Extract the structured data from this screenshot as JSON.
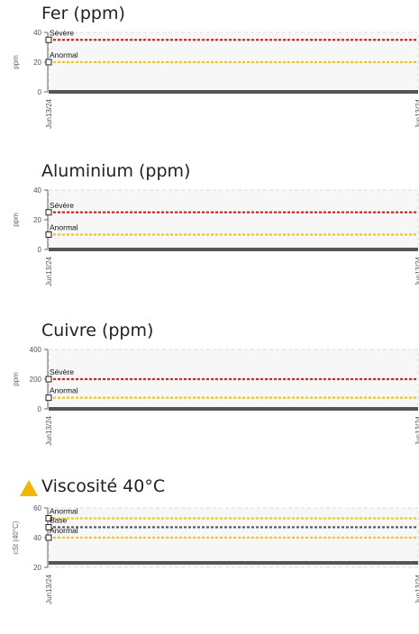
{
  "chart_data": [
    {
      "type": "line",
      "title": "Fer (ppm)",
      "ylabel": "ppm",
      "ylim": [
        0,
        40
      ],
      "yticks": [
        0,
        20,
        40
      ],
      "x": [
        "Jun13/24",
        "Jun13/24"
      ],
      "series": [
        {
          "values": [
            0,
            0
          ],
          "color": "#555555"
        }
      ],
      "thresholds": [
        {
          "label": "Sévère",
          "value": 35,
          "color": "#e8201e"
        },
        {
          "label": "Anormal",
          "value": 20,
          "color": "#f2c61a"
        }
      ],
      "warning": false
    },
    {
      "type": "line",
      "title": "Aluminium (ppm)",
      "ylabel": "ppm",
      "ylim": [
        0,
        40
      ],
      "yticks": [
        0,
        20,
        40
      ],
      "x": [
        "Jun13/24",
        "Jun13/24"
      ],
      "series": [
        {
          "values": [
            0,
            0
          ],
          "color": "#555555"
        }
      ],
      "thresholds": [
        {
          "label": "Sévère",
          "value": 25,
          "color": "#e8201e"
        },
        {
          "label": "Anormal",
          "value": 10,
          "color": "#f2c61a"
        }
      ],
      "warning": false
    },
    {
      "type": "line",
      "title": "Cuivre (ppm)",
      "ylabel": "ppm",
      "ylim": [
        0,
        400
      ],
      "yticks": [
        0,
        200,
        400
      ],
      "x": [
        "Jun13/24",
        "Jun13/24"
      ],
      "series": [
        {
          "values": [
            0,
            0
          ],
          "color": "#555555"
        }
      ],
      "thresholds": [
        {
          "label": "Sévère",
          "value": 200,
          "color": "#e8201e"
        },
        {
          "label": "Anormal",
          "value": 75,
          "color": "#f2c61a"
        }
      ],
      "warning": false
    },
    {
      "type": "line",
      "title": "Viscosité 40°C",
      "ylabel": "cSt (40°C)",
      "ylim": [
        20,
        60
      ],
      "yticks": [
        20,
        40,
        60
      ],
      "x": [
        "Jun13/24",
        "Jun13/24"
      ],
      "series": [
        {
          "values": [
            23,
            23
          ],
          "color": "#555555"
        }
      ],
      "thresholds": [
        {
          "label": "Anormal",
          "value": 53,
          "color": "#f2c61a"
        },
        {
          "label": "Base",
          "value": 47,
          "color": "#555555"
        },
        {
          "label": "Anormal",
          "value": 40,
          "color": "#f2c61a"
        }
      ],
      "warning": true,
      "warning_color": "#f5b400"
    }
  ]
}
